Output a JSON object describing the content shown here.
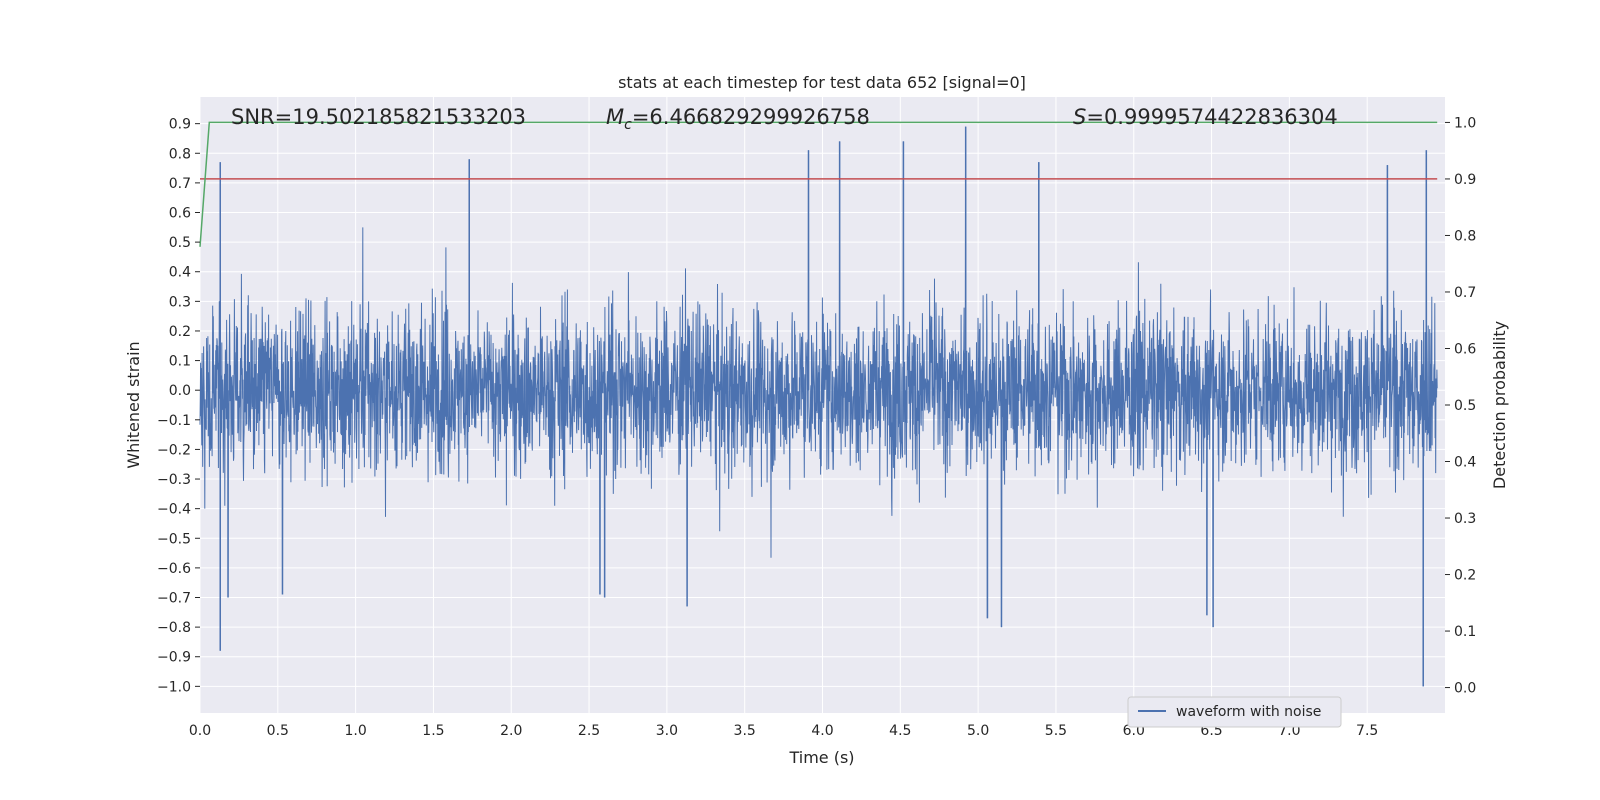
{
  "chart_data": {
    "type": "line",
    "title": "stats at each timestep for test data 652 [signal=0]",
    "xlabel": "Time (s)",
    "ylabel": "Whitened strain",
    "y2label": "Detection probability",
    "xlim": [
      0.0,
      8.0
    ],
    "ylim": [
      -1.09,
      0.99
    ],
    "y2lim": [
      -0.045,
      1.045
    ],
    "x_ticks": [
      0.0,
      0.5,
      1.0,
      1.5,
      2.0,
      2.5,
      3.0,
      3.5,
      4.0,
      4.5,
      5.0,
      5.5,
      6.0,
      6.5,
      7.0,
      7.5
    ],
    "x_tick_labels": [
      "0.0",
      "0.5",
      "1.0",
      "1.5",
      "2.0",
      "2.5",
      "3.0",
      "3.5",
      "4.0",
      "4.5",
      "5.0",
      "5.5",
      "6.0",
      "6.5",
      "7.0",
      "7.5"
    ],
    "y_ticks": [
      0.9,
      0.8,
      0.7,
      0.6,
      0.5,
      0.4,
      0.3,
      0.2,
      0.1,
      0.0,
      -0.1,
      -0.2,
      -0.3,
      -0.4,
      -0.5,
      -0.6,
      -0.7,
      -0.8,
      -0.9,
      -1.0
    ],
    "y_tick_labels": [
      "0.9",
      "0.8",
      "0.7",
      "0.6",
      "0.5",
      "0.4",
      "0.3",
      "0.2",
      "0.1",
      "0.0",
      "−0.1",
      "−0.2",
      "−0.3",
      "−0.4",
      "−0.5",
      "−0.6",
      "−0.7",
      "−0.8",
      "−0.9",
      "−1.0"
    ],
    "y2_ticks": [
      1.0,
      0.9,
      0.8,
      0.7,
      0.6,
      0.5,
      0.4,
      0.3,
      0.2,
      0.1,
      0.0
    ],
    "y2_tick_labels": [
      "1.0",
      "0.9",
      "0.8",
      "0.7",
      "0.6",
      "0.5",
      "0.4",
      "0.3",
      "0.2",
      "0.1",
      "0.0"
    ],
    "annotations": {
      "snr": "SNR=19.502185821533203",
      "mc_symbol": "M",
      "mc_sub": "c",
      "mc_value": "=6.466829299926758",
      "s_symbol": "S",
      "s_value": "=0.9999574422836304"
    },
    "legend": {
      "label": "waveform with noise",
      "position": "lower-right"
    },
    "grid": true,
    "series": [
      {
        "name": "waveform with noise",
        "axis": "left",
        "kind": "noise",
        "samples": 4096,
        "typical_range": [
          -0.45,
          0.45
        ],
        "peaks": [
          {
            "t": 0.13,
            "v": 0.77
          },
          {
            "t": 1.73,
            "v": 0.78
          },
          {
            "t": 3.91,
            "v": 0.81
          },
          {
            "t": 4.11,
            "v": 0.84
          },
          {
            "t": 4.52,
            "v": 0.84
          },
          {
            "t": 4.92,
            "v": 0.89
          },
          {
            "t": 5.39,
            "v": 0.77
          },
          {
            "t": 7.88,
            "v": 0.81
          },
          {
            "t": 7.63,
            "v": 0.76
          },
          {
            "t": 0.13,
            "v": -0.88
          },
          {
            "t": 7.86,
            "v": -1.0
          },
          {
            "t": 5.15,
            "v": -0.8
          },
          {
            "t": 6.51,
            "v": -0.8
          },
          {
            "t": 5.06,
            "v": -0.77
          },
          {
            "t": 3.13,
            "v": -0.73
          },
          {
            "t": 0.18,
            "v": -0.7
          },
          {
            "t": 0.53,
            "v": -0.69
          },
          {
            "t": 2.6,
            "v": -0.7
          },
          {
            "t": 2.57,
            "v": -0.69
          },
          {
            "t": 6.47,
            "v": -0.76
          }
        ],
        "color": "#4c72b0"
      },
      {
        "name": "detection probability",
        "axis": "right",
        "kind": "line",
        "x": [
          0.0,
          0.06,
          7.95
        ],
        "values": [
          0.78,
          1.0,
          1.0
        ],
        "color": "#55a868"
      },
      {
        "name": "threshold",
        "axis": "right",
        "kind": "hline",
        "x": [
          0.0,
          7.95
        ],
        "values": [
          0.9,
          0.9
        ],
        "color": "#c44e52"
      }
    ]
  }
}
